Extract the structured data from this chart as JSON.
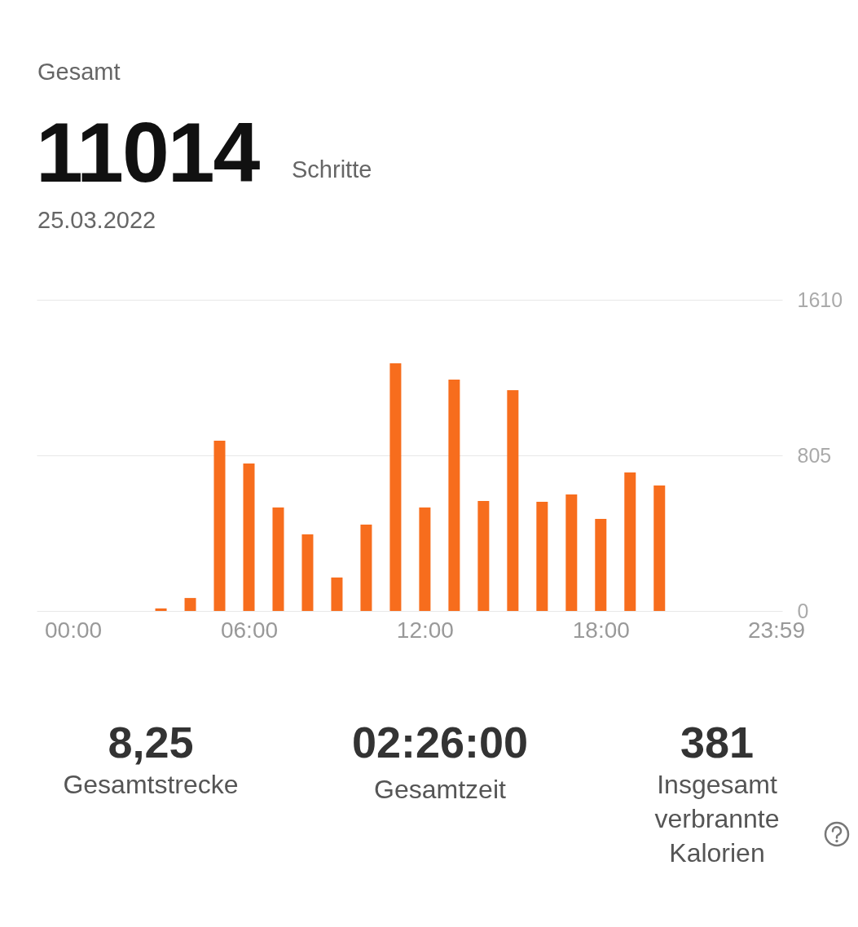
{
  "chart_data": {
    "type": "bar",
    "title": "Gesamt",
    "annotations": [
      "11014",
      "Schritte",
      "25.03.2022",
      "8,25",
      "Gesamtstrecke",
      "02:26:00",
      "Gesamtzeit",
      "381",
      "Insgesamt verbrannte Kalorien"
    ],
    "x": [
      3,
      4,
      5,
      6,
      7,
      8,
      9,
      10,
      11,
      12,
      13,
      14,
      15,
      16,
      17,
      18,
      19,
      20
    ],
    "values": [
      13,
      67,
      881,
      763,
      535,
      396,
      173,
      447,
      1281,
      535,
      1197,
      569,
      1142,
      565,
      603,
      476,
      717,
      649
    ],
    "color": "#f76d1d",
    "xlim": [
      -1.1,
      24.05
    ],
    "xticks": [
      {
        "value": 0,
        "label": "00:00"
      },
      {
        "value": 6,
        "label": "06:00"
      },
      {
        "value": 12,
        "label": "12:00"
      },
      {
        "value": 18,
        "label": "18:00"
      },
      {
        "value": 23.98,
        "label": "23:59"
      }
    ],
    "ylim": [
      0,
      1610
    ],
    "yticks": [
      0,
      805,
      1610
    ],
    "grid": "y"
  }
}
